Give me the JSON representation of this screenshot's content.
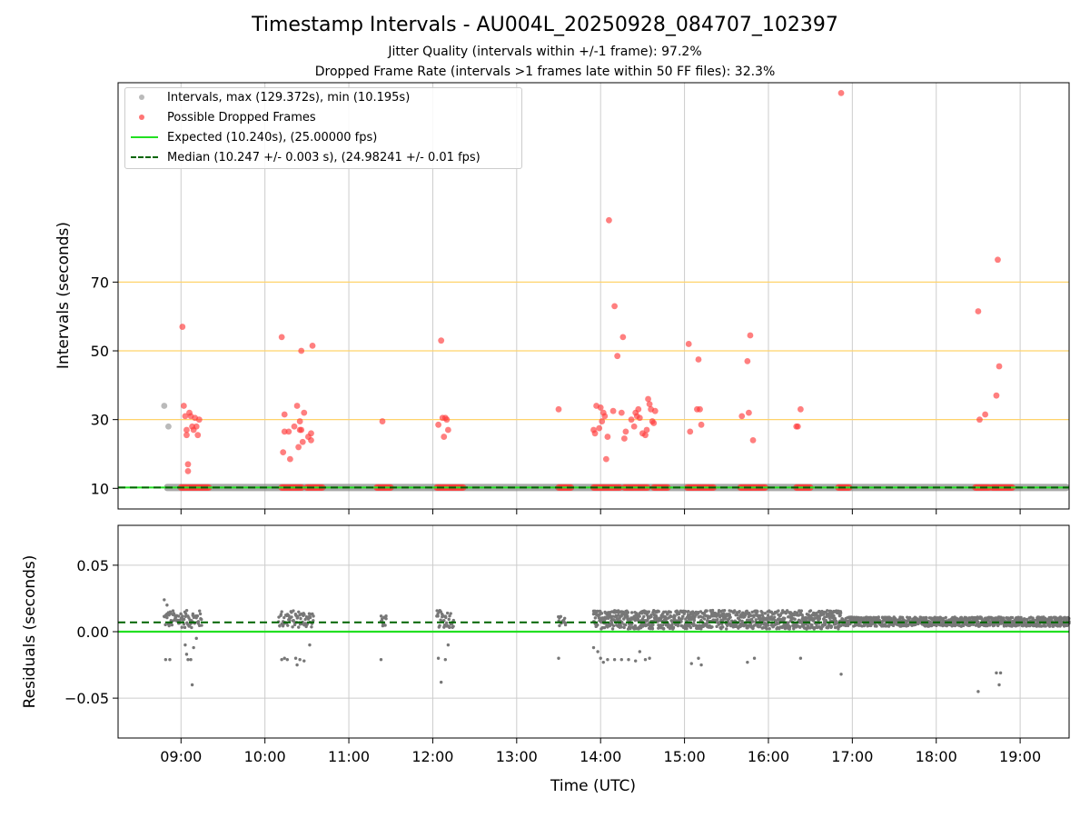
{
  "title": "Timestamp Intervals - AU004L_20250928_084707_102397",
  "subtitle_1": "Jitter Quality (intervals within +/-1 frame): 97.2%",
  "subtitle_2": "Dropped Frame Rate (intervals >1 frames late within 50 FF files): 32.3%",
  "colors": {
    "intervals": "#8c8c8c",
    "dropped": "#ff3b3b",
    "expected": "#22e022",
    "median": "#006400",
    "threshold": "#ffd36b",
    "grid": "#cccccc"
  },
  "legend": {
    "intervals": "Intervals, max (129.372s), min (10.195s)",
    "dropped": "Possible Dropped Frames",
    "expected": "Expected (10.240s), (25.00000 fps)",
    "median": "Median (10.247 +/- 0.003 s), (24.98241 +/- 0.01 fps)"
  },
  "chart_data": [
    {
      "type": "scatter",
      "panel": "intervals",
      "ylabel": "Intervals (seconds)",
      "xlabel": "",
      "xlim": [
        "08:15",
        "19:35"
      ],
      "ylim": [
        4,
        128
      ],
      "yticks": [
        10,
        30,
        50,
        70
      ],
      "xticks": [
        "09:00",
        "10:00",
        "11:00",
        "12:00",
        "13:00",
        "14:00",
        "15:00",
        "16:00",
        "17:00",
        "18:00",
        "19:00"
      ],
      "threshold_lines": [
        30,
        50,
        70
      ],
      "expected": 10.24,
      "median": 10.247,
      "intervals_band": {
        "start": "08:48",
        "end": "19:35",
        "value": 10.24
      },
      "interval_points": [
        {
          "t": "08:48",
          "y": 34.0
        },
        {
          "t": "08:51",
          "y": 28.0
        }
      ],
      "dropped_frame_points": [
        {
          "t": "09:01",
          "y": 57
        },
        {
          "t": "09:02",
          "y": 34
        },
        {
          "t": "09:03",
          "y": 31
        },
        {
          "t": "09:04",
          "y": 27
        },
        {
          "t": "09:04",
          "y": 25.5
        },
        {
          "t": "09:05",
          "y": 15
        },
        {
          "t": "09:05",
          "y": 17
        },
        {
          "t": "09:06",
          "y": 32
        },
        {
          "t": "09:07",
          "y": 31
        },
        {
          "t": "09:08",
          "y": 28
        },
        {
          "t": "09:09",
          "y": 27
        },
        {
          "t": "09:10",
          "y": 30.5
        },
        {
          "t": "09:11",
          "y": 28
        },
        {
          "t": "09:12",
          "y": 25.5
        },
        {
          "t": "09:13",
          "y": 30
        },
        {
          "t": "10:12",
          "y": 54
        },
        {
          "t": "10:13",
          "y": 20.5
        },
        {
          "t": "10:14",
          "y": 26.5
        },
        {
          "t": "10:14",
          "y": 31.5
        },
        {
          "t": "10:17",
          "y": 26.5
        },
        {
          "t": "10:18",
          "y": 18.5
        },
        {
          "t": "10:21",
          "y": 28
        },
        {
          "t": "10:23",
          "y": 34
        },
        {
          "t": "10:24",
          "y": 22
        },
        {
          "t": "10:25",
          "y": 27
        },
        {
          "t": "10:25",
          "y": 29.5
        },
        {
          "t": "10:26",
          "y": 27
        },
        {
          "t": "10:26",
          "y": 50
        },
        {
          "t": "10:27",
          "y": 23.5
        },
        {
          "t": "10:28",
          "y": 32
        },
        {
          "t": "10:31",
          "y": 25
        },
        {
          "t": "10:33",
          "y": 24
        },
        {
          "t": "10:33",
          "y": 26
        },
        {
          "t": "10:34",
          "y": 51.5
        },
        {
          "t": "11:24",
          "y": 29.5
        },
        {
          "t": "12:04",
          "y": 28.5
        },
        {
          "t": "12:06",
          "y": 53
        },
        {
          "t": "12:07",
          "y": 30.5
        },
        {
          "t": "12:08",
          "y": 25
        },
        {
          "t": "12:09",
          "y": 30.5
        },
        {
          "t": "12:10",
          "y": 30
        },
        {
          "t": "12:11",
          "y": 27
        },
        {
          "t": "13:30",
          "y": 33
        },
        {
          "t": "13:55",
          "y": 27
        },
        {
          "t": "13:56",
          "y": 26
        },
        {
          "t": "13:57",
          "y": 34
        },
        {
          "t": "13:59",
          "y": 27.5
        },
        {
          "t": "14:00",
          "y": 33.5
        },
        {
          "t": "14:01",
          "y": 29.5
        },
        {
          "t": "14:02",
          "y": 32
        },
        {
          "t": "14:03",
          "y": 31
        },
        {
          "t": "14:04",
          "y": 18.5
        },
        {
          "t": "14:05",
          "y": 25
        },
        {
          "t": "14:06",
          "y": 88
        },
        {
          "t": "14:09",
          "y": 32.5
        },
        {
          "t": "14:10",
          "y": 63
        },
        {
          "t": "14:12",
          "y": 48.5
        },
        {
          "t": "14:15",
          "y": 32
        },
        {
          "t": "14:16",
          "y": 54
        },
        {
          "t": "14:17",
          "y": 24.5
        },
        {
          "t": "14:18",
          "y": 26.5
        },
        {
          "t": "14:22",
          "y": 30
        },
        {
          "t": "14:24",
          "y": 28
        },
        {
          "t": "14:25",
          "y": 32
        },
        {
          "t": "14:26",
          "y": 31
        },
        {
          "t": "14:27",
          "y": 33
        },
        {
          "t": "14:28",
          "y": 30.5
        },
        {
          "t": "14:30",
          "y": 26
        },
        {
          "t": "14:32",
          "y": 25.5
        },
        {
          "t": "14:33",
          "y": 27
        },
        {
          "t": "14:34",
          "y": 36
        },
        {
          "t": "14:35",
          "y": 34.5
        },
        {
          "t": "14:36",
          "y": 33
        },
        {
          "t": "14:37",
          "y": 29.5
        },
        {
          "t": "14:38",
          "y": 29
        },
        {
          "t": "14:39",
          "y": 32.5
        },
        {
          "t": "15:03",
          "y": 52
        },
        {
          "t": "15:04",
          "y": 26.5
        },
        {
          "t": "15:09",
          "y": 33
        },
        {
          "t": "15:10",
          "y": 47.5
        },
        {
          "t": "15:11",
          "y": 33
        },
        {
          "t": "15:12",
          "y": 28.5
        },
        {
          "t": "15:41",
          "y": 31
        },
        {
          "t": "15:45",
          "y": 47
        },
        {
          "t": "15:46",
          "y": 32
        },
        {
          "t": "15:47",
          "y": 54.5
        },
        {
          "t": "15:49",
          "y": 24
        },
        {
          "t": "16:20",
          "y": 28
        },
        {
          "t": "16:21",
          "y": 28
        },
        {
          "t": "16:23",
          "y": 33
        },
        {
          "t": "16:52",
          "y": 125
        },
        {
          "t": "18:30",
          "y": 61.5
        },
        {
          "t": "18:31",
          "y": 30
        },
        {
          "t": "18:35",
          "y": 31.5
        },
        {
          "t": "18:43",
          "y": 37
        },
        {
          "t": "18:44",
          "y": 76.5
        },
        {
          "t": "18:45",
          "y": 45.5
        }
      ],
      "dropped_clusters_at_floor": [
        {
          "start": "09:00",
          "end": "09:20"
        },
        {
          "start": "10:12",
          "end": "10:27"
        },
        {
          "start": "10:30",
          "end": "10:42"
        },
        {
          "start": "11:20",
          "end": "11:30"
        },
        {
          "start": "12:03",
          "end": "12:22"
        },
        {
          "start": "13:30",
          "end": "13:39"
        },
        {
          "start": "13:55",
          "end": "14:14"
        },
        {
          "start": "14:17",
          "end": "14:34"
        },
        {
          "start": "14:38",
          "end": "14:49"
        },
        {
          "start": "15:02",
          "end": "15:21"
        },
        {
          "start": "15:40",
          "end": "15:58"
        },
        {
          "start": "16:20",
          "end": "16:31"
        },
        {
          "start": "16:50",
          "end": "16:58"
        },
        {
          "start": "18:28",
          "end": "18:38"
        },
        {
          "start": "18:40",
          "end": "18:55"
        }
      ]
    },
    {
      "type": "scatter",
      "panel": "residuals",
      "ylabel": "Residuals (seconds)",
      "xlabel": "Time (UTC)",
      "xlim": [
        "08:15",
        "19:35"
      ],
      "ylim": [
        -0.08,
        0.08
      ],
      "yticks": [
        -0.05,
        0.0,
        0.05
      ],
      "ytick_labels": [
        "−0.05",
        "0.00",
        "0.05"
      ],
      "xticks": [
        "09:00",
        "10:00",
        "11:00",
        "12:00",
        "13:00",
        "14:00",
        "15:00",
        "16:00",
        "17:00",
        "18:00",
        "19:00"
      ],
      "expected_residual": 0.0,
      "median_residual": 0.007,
      "residual_clusters": [
        {
          "start": "08:48",
          "end": "09:15",
          "lo": 0.003,
          "hi": 0.016
        },
        {
          "start": "10:10",
          "end": "10:35",
          "lo": 0.003,
          "hi": 0.016
        },
        {
          "start": "11:23",
          "end": "11:27",
          "lo": 0.004,
          "hi": 0.012
        },
        {
          "start": "12:03",
          "end": "12:15",
          "lo": 0.003,
          "hi": 0.016
        },
        {
          "start": "13:30",
          "end": "13:35",
          "lo": 0.004,
          "hi": 0.012
        },
        {
          "start": "13:55",
          "end": "16:52",
          "lo": 0.002,
          "hi": 0.016
        },
        {
          "start": "16:52",
          "end": "19:35",
          "lo": 0.004,
          "hi": 0.011
        }
      ],
      "residual_outliers": [
        {
          "t": "08:48",
          "y": 0.024
        },
        {
          "t": "08:50",
          "y": 0.02
        },
        {
          "t": "08:49",
          "y": -0.021
        },
        {
          "t": "08:52",
          "y": -0.021
        },
        {
          "t": "09:03",
          "y": -0.01
        },
        {
          "t": "09:04",
          "y": -0.017
        },
        {
          "t": "09:05",
          "y": -0.021
        },
        {
          "t": "09:07",
          "y": -0.021
        },
        {
          "t": "09:08",
          "y": -0.04
        },
        {
          "t": "09:09",
          "y": -0.012
        },
        {
          "t": "09:11",
          "y": -0.005
        },
        {
          "t": "10:12",
          "y": -0.021
        },
        {
          "t": "10:14",
          "y": -0.02
        },
        {
          "t": "10:16",
          "y": -0.021
        },
        {
          "t": "10:22",
          "y": -0.02
        },
        {
          "t": "10:23",
          "y": -0.025
        },
        {
          "t": "10:25",
          "y": -0.021
        },
        {
          "t": "10:28",
          "y": -0.022
        },
        {
          "t": "10:32",
          "y": -0.01
        },
        {
          "t": "11:23",
          "y": -0.021
        },
        {
          "t": "12:04",
          "y": -0.02
        },
        {
          "t": "12:06",
          "y": -0.038
        },
        {
          "t": "12:09",
          "y": -0.021
        },
        {
          "t": "12:11",
          "y": -0.01
        },
        {
          "t": "13:30",
          "y": -0.02
        },
        {
          "t": "13:55",
          "y": -0.012
        },
        {
          "t": "13:58",
          "y": -0.015
        },
        {
          "t": "14:00",
          "y": -0.02
        },
        {
          "t": "14:02",
          "y": -0.023
        },
        {
          "t": "14:05",
          "y": -0.021
        },
        {
          "t": "14:10",
          "y": -0.021
        },
        {
          "t": "14:15",
          "y": -0.021
        },
        {
          "t": "14:20",
          "y": -0.021
        },
        {
          "t": "14:25",
          "y": -0.022
        },
        {
          "t": "14:28",
          "y": -0.015
        },
        {
          "t": "14:32",
          "y": -0.021
        },
        {
          "t": "14:35",
          "y": -0.02
        },
        {
          "t": "15:05",
          "y": -0.024
        },
        {
          "t": "15:10",
          "y": -0.02
        },
        {
          "t": "15:12",
          "y": -0.025
        },
        {
          "t": "15:45",
          "y": -0.023
        },
        {
          "t": "15:50",
          "y": -0.02
        },
        {
          "t": "16:23",
          "y": -0.02
        },
        {
          "t": "16:52",
          "y": -0.032
        },
        {
          "t": "18:30",
          "y": -0.045
        },
        {
          "t": "18:43",
          "y": -0.031
        },
        {
          "t": "18:45",
          "y": -0.04
        },
        {
          "t": "18:46",
          "y": -0.031
        }
      ]
    }
  ]
}
